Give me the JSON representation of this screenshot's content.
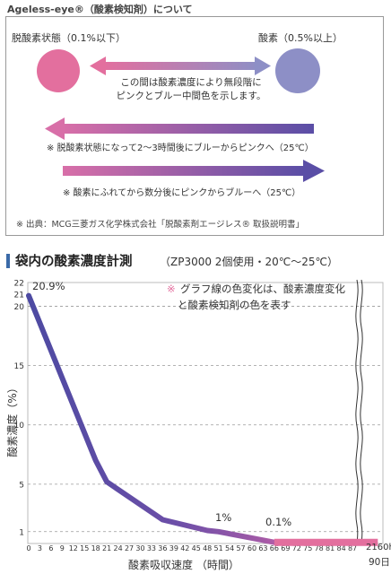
{
  "top_title": "Ageless-eye®（酸素検知剤）について",
  "info": {
    "deox_label": "脱酸素状態（0.1%以下）",
    "oxy_label": "酸素（0.5%以上）",
    "mid_text_line1": "この間は酸素濃度により無段階に",
    "mid_text_line2": "ピンクとブルー中間色を示します。",
    "note1": "※ 脱酸素状態になって2～3時間後にブルーからピンクへ（25℃）",
    "note2": "※ 酸素にふれてから数分後にピンクからブルーへ（25℃）",
    "source": "※ 出典：MCG三菱ガス化学株式会社「脱酸素剤エージレス® 取扱説明書」",
    "colors": {
      "pink": "#e36f9e",
      "blue": "#8d8fc6",
      "line_blue": "#5a4ea6"
    }
  },
  "chart_title": "袋内の酸素濃度計測",
  "chart_conditions": "（ZP3000 2個使用・20℃～25℃）",
  "chart_data": {
    "type": "line",
    "title": "袋内の酸素濃度計測",
    "xlabel": "酸素吸収速度 （時間）",
    "ylabel": "酸素濃度（%）",
    "x_ticks": [
      "0",
      "3",
      "6",
      "9",
      "12",
      "15",
      "18",
      "21",
      "24",
      "27",
      "30",
      "33",
      "36",
      "39",
      "42",
      "45",
      "48",
      "51",
      "54",
      "57",
      "60",
      "63",
      "66",
      "69",
      "72",
      "75",
      "78",
      "81",
      "84",
      "87"
    ],
    "x_end_label": "2160h",
    "x_end_sublabel": "90日",
    "y_ticks": [
      "22",
      "21",
      "20",
      "15",
      "10",
      "5",
      "1"
    ],
    "ylim": [
      0,
      22
    ],
    "annotations": [
      "20.9%",
      "1%",
      "0.1%"
    ],
    "legend_note_line1": "グラフ線の色変化は、酸素濃度変化",
    "legend_note_line2": "と酸素検知剤の色を表す",
    "legend_note_mark": "※",
    "series": [
      {
        "x": [
          0,
          18,
          21,
          36,
          48,
          51,
          66
        ],
        "y": [
          20.9,
          7,
          5.2,
          2,
          1.1,
          1,
          0.1
        ]
      }
    ],
    "tail": {
      "x": [
        66,
        89
      ],
      "y": [
        0.1,
        0.1
      ]
    }
  }
}
